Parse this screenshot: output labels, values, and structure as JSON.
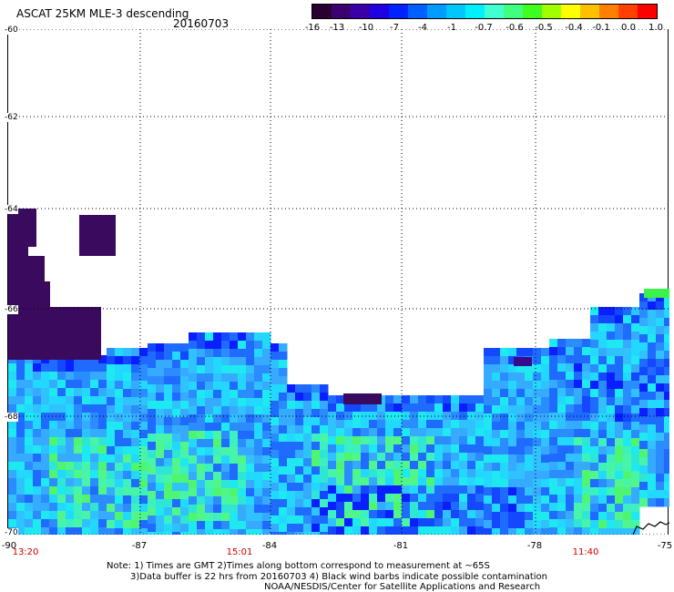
{
  "header": {
    "title": "ASCAT 25KM MLE-3 descending",
    "date": "20160703"
  },
  "colorbar": {
    "colors": [
      "#2a0033",
      "#3d0070",
      "#3a00a8",
      "#1e00e0",
      "#0022ff",
      "#0060ff",
      "#009cff",
      "#00c8ff",
      "#00f0ff",
      "#40ffd0",
      "#40ff80",
      "#40ff20",
      "#a0ff00",
      "#ffff00",
      "#ffc000",
      "#ff8000",
      "#ff4000",
      "#ff0000"
    ],
    "labels": [
      "-16",
      "-13",
      "-10",
      "-7",
      "-4",
      "-1",
      "-0.7",
      "-0.6",
      "-0.5",
      "-0.4",
      "-0.1",
      "0.0",
      "1.0"
    ]
  },
  "axes": {
    "lat_ticks": [
      "-60",
      "-62",
      "-64",
      "-66",
      "-68",
      "-70"
    ],
    "lon_ticks": [
      "-90",
      "-87",
      "-84",
      "-81",
      "-78",
      "-75"
    ],
    "times": [
      "13:20",
      "15:01",
      "11:40"
    ]
  },
  "notes": {
    "line1": "Note: 1) Times are GMT 2)Times along bottom correspond to measurement at ~65S",
    "line2": "3)Data buffer is 22 hrs from 20160703 4) Black wind barbs indicate possible contamination",
    "line3": "NOAA/NESDIS/Center for Satellite Applications and Research"
  }
}
